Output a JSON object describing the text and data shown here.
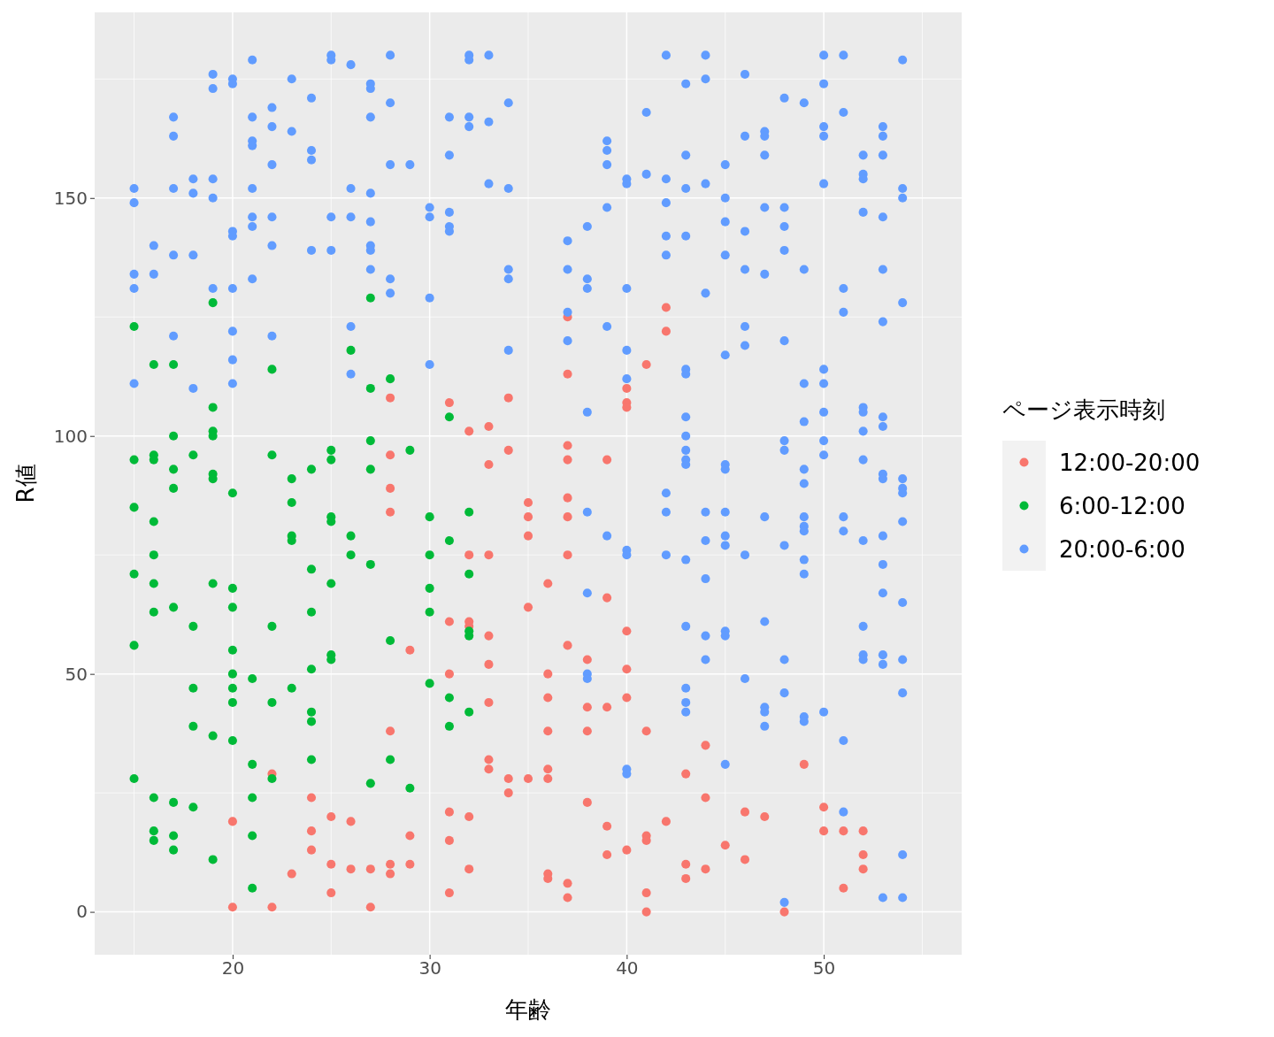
{
  "chart_data": {
    "type": "scatter",
    "xlabel": "年齢",
    "ylabel": "R値",
    "legend_title": "ページ表示時刻",
    "legend": "right",
    "grid": true,
    "marker": "circle",
    "xlim": [
      13,
      57
    ],
    "xticks": [
      20,
      30,
      40,
      50
    ],
    "ylim": [
      -9,
      189
    ],
    "yticks": [
      0,
      50,
      100,
      150
    ],
    "series": [
      {
        "name": "12:00-20:00",
        "color": "#f8766d",
        "x": [
          20,
          20,
          22,
          22,
          23,
          24,
          24,
          24,
          25,
          25,
          25,
          26,
          26,
          27,
          27,
          28,
          28,
          28,
          28,
          28,
          28,
          28,
          29,
          29,
          29,
          31,
          31,
          31,
          31,
          31,
          31,
          32,
          32,
          32,
          32,
          32,
          32,
          33,
          33,
          33,
          33,
          33,
          33,
          33,
          33,
          34,
          34,
          34,
          34,
          35,
          35,
          35,
          35,
          35,
          36,
          36,
          36,
          36,
          36,
          36,
          36,
          36,
          37,
          37,
          37,
          37,
          37,
          37,
          37,
          37,
          37,
          37,
          38,
          38,
          38,
          38,
          39,
          39,
          39,
          39,
          39,
          40,
          40,
          40,
          40,
          40,
          40,
          40,
          41,
          41,
          41,
          41,
          41,
          41,
          42,
          42,
          42,
          43,
          43,
          43,
          44,
          44,
          44,
          45,
          46,
          46,
          47,
          48,
          49,
          50,
          50,
          51,
          51,
          52,
          52,
          52
        ],
        "values": [
          19,
          1,
          29,
          1,
          8,
          24,
          17,
          13,
          20,
          10,
          4,
          19,
          9,
          9,
          1,
          108,
          96,
          89,
          84,
          38,
          10,
          8,
          55,
          16,
          10,
          107,
          61,
          50,
          21,
          15,
          4,
          101,
          75,
          61,
          60,
          20,
          9,
          102,
          94,
          75,
          58,
          52,
          44,
          32,
          30,
          108,
          97,
          28,
          25,
          86,
          83,
          79,
          64,
          28,
          69,
          50,
          45,
          38,
          30,
          28,
          8,
          7,
          125,
          113,
          98,
          95,
          87,
          83,
          75,
          56,
          6,
          3,
          53,
          43,
          38,
          23,
          95,
          66,
          43,
          18,
          12,
          110,
          107,
          106,
          59,
          51,
          45,
          13,
          115,
          38,
          16,
          15,
          4,
          0,
          127,
          122,
          19,
          29,
          10,
          7,
          35,
          24,
          9,
          14,
          21,
          11,
          20,
          0,
          31,
          22,
          17,
          17,
          5,
          17,
          12,
          9
        ]
      },
      {
        "name": "6:00-12:00",
        "color": "#00ba38",
        "x": [
          15,
          15,
          15,
          15,
          15,
          15,
          16,
          16,
          16,
          16,
          16,
          16,
          16,
          16,
          16,
          16,
          17,
          17,
          17,
          17,
          17,
          17,
          17,
          17,
          18,
          18,
          18,
          18,
          18,
          19,
          19,
          19,
          19,
          19,
          19,
          19,
          19,
          19,
          20,
          20,
          20,
          20,
          20,
          20,
          20,
          20,
          21,
          21,
          21,
          21,
          21,
          22,
          22,
          22,
          22,
          22,
          23,
          23,
          23,
          23,
          23,
          24,
          24,
          24,
          24,
          24,
          24,
          24,
          25,
          25,
          25,
          25,
          25,
          25,
          25,
          26,
          26,
          26,
          27,
          27,
          27,
          27,
          27,
          27,
          28,
          28,
          28,
          29,
          29,
          30,
          30,
          30,
          30,
          30,
          31,
          31,
          31,
          31,
          32,
          32,
          32,
          32,
          32
        ],
        "values": [
          123,
          95,
          85,
          71,
          56,
          28,
          115,
          96,
          95,
          82,
          75,
          69,
          63,
          24,
          17,
          15,
          115,
          100,
          93,
          89,
          64,
          23,
          16,
          13,
          96,
          60,
          47,
          39,
          22,
          128,
          106,
          101,
          100,
          92,
          91,
          69,
          37,
          11,
          88,
          68,
          64,
          55,
          50,
          47,
          44,
          36,
          49,
          31,
          24,
          16,
          5,
          114,
          96,
          60,
          44,
          28,
          91,
          86,
          79,
          78,
          47,
          93,
          72,
          63,
          51,
          42,
          40,
          32,
          97,
          95,
          83,
          82,
          69,
          54,
          53,
          118,
          79,
          75,
          129,
          110,
          99,
          93,
          73,
          27,
          112,
          57,
          32,
          97,
          26,
          83,
          75,
          68,
          63,
          48,
          104,
          78,
          45,
          39,
          84,
          71,
          59,
          58,
          42
        ]
      },
      {
        "name": "20:00-6:00",
        "color": "#619cff",
        "x": [
          15,
          15,
          15,
          15,
          15,
          16,
          16,
          17,
          17,
          17,
          17,
          17,
          18,
          18,
          18,
          18,
          19,
          19,
          19,
          19,
          19,
          20,
          20,
          20,
          20,
          20,
          20,
          20,
          20,
          21,
          21,
          21,
          21,
          21,
          21,
          21,
          21,
          22,
          22,
          22,
          22,
          22,
          22,
          23,
          23,
          24,
          24,
          24,
          24,
          25,
          25,
          25,
          25,
          26,
          26,
          26,
          26,
          26,
          27,
          27,
          27,
          27,
          27,
          27,
          27,
          27,
          28,
          28,
          28,
          28,
          28,
          29,
          30,
          30,
          30,
          30,
          31,
          31,
          31,
          31,
          31,
          32,
          32,
          32,
          32,
          33,
          33,
          33,
          34,
          34,
          34,
          34,
          34,
          37,
          37,
          37,
          37,
          38,
          38,
          38,
          38,
          38,
          38,
          38,
          38,
          39,
          39,
          39,
          39,
          39,
          39,
          40,
          40,
          40,
          40,
          40,
          40,
          40,
          40,
          40,
          41,
          41,
          42,
          42,
          42,
          42,
          42,
          42,
          42,
          42,
          43,
          43,
          43,
          43,
          43,
          43,
          43,
          43,
          43,
          43,
          43,
          43,
          43,
          43,
          43,
          43,
          44,
          44,
          44,
          44,
          44,
          44,
          44,
          44,
          44,
          45,
          45,
          45,
          45,
          45,
          45,
          45,
          45,
          45,
          45,
          45,
          45,
          45,
          46,
          46,
          46,
          46,
          46,
          46,
          46,
          46,
          47,
          47,
          47,
          47,
          47,
          47,
          47,
          47,
          47,
          47,
          48,
          48,
          48,
          48,
          48,
          48,
          48,
          48,
          48,
          48,
          48,
          49,
          49,
          49,
          49,
          49,
          49,
          49,
          49,
          49,
          49,
          49,
          49,
          49,
          50,
          50,
          50,
          50,
          50,
          50,
          50,
          50,
          50,
          50,
          50,
          51,
          51,
          51,
          51,
          51,
          51,
          51,
          51,
          52,
          52,
          52,
          52,
          52,
          52,
          52,
          52,
          52,
          52,
          52,
          52,
          53,
          53,
          53,
          53,
          53,
          53,
          53,
          53,
          53,
          53,
          53,
          53,
          53,
          53,
          53,
          53,
          54,
          54,
          54,
          54,
          54,
          54,
          54,
          54,
          54,
          54,
          54,
          54,
          54
        ],
        "values": [
          152,
          149,
          134,
          131,
          111,
          140,
          134,
          167,
          163,
          152,
          138,
          121,
          154,
          151,
          138,
          110,
          176,
          173,
          154,
          150,
          131,
          175,
          174,
          143,
          142,
          131,
          122,
          116,
          111,
          179,
          167,
          162,
          161,
          152,
          146,
          144,
          133,
          169,
          165,
          157,
          146,
          140,
          121,
          175,
          164,
          171,
          160,
          158,
          139,
          180,
          179,
          146,
          139,
          178,
          152,
          146,
          123,
          113,
          174,
          173,
          167,
          151,
          145,
          140,
          139,
          135,
          180,
          170,
          157,
          133,
          130,
          157,
          148,
          146,
          129,
          115,
          167,
          159,
          147,
          144,
          143,
          180,
          179,
          167,
          165,
          180,
          166,
          153,
          170,
          152,
          135,
          133,
          118,
          141,
          135,
          126,
          120,
          144,
          133,
          131,
          105,
          84,
          67,
          50,
          49,
          162,
          160,
          157,
          148,
          123,
          79,
          154,
          153,
          131,
          118,
          112,
          76,
          75,
          30,
          29,
          168,
          155,
          180,
          154,
          149,
          142,
          138,
          88,
          84,
          75,
          174,
          159,
          152,
          142,
          114,
          113,
          104,
          100,
          97,
          95,
          94,
          74,
          60,
          47,
          44,
          42,
          180,
          175,
          153,
          130,
          84,
          78,
          70,
          58,
          53,
          157,
          150,
          145,
          138,
          117,
          94,
          93,
          84,
          79,
          77,
          59,
          58,
          31,
          176,
          163,
          143,
          135,
          123,
          119,
          75,
          49,
          164,
          163,
          159,
          148,
          134,
          83,
          61,
          43,
          42,
          39,
          171,
          148,
          144,
          139,
          120,
          99,
          97,
          77,
          53,
          46,
          2,
          170,
          135,
          111,
          103,
          93,
          90,
          83,
          81,
          80,
          74,
          71,
          41,
          40,
          180,
          174,
          165,
          163,
          153,
          114,
          111,
          105,
          99,
          96,
          42,
          180,
          168,
          131,
          126,
          83,
          80,
          36,
          21,
          159,
          155,
          154,
          147,
          106,
          105,
          101,
          95,
          78,
          60,
          54,
          53,
          165,
          163,
          159,
          146,
          135,
          124,
          104,
          102,
          92,
          91,
          79,
          73,
          67,
          54,
          52,
          3,
          179,
          152,
          150,
          128,
          91,
          89,
          88,
          82,
          65,
          53,
          46,
          12,
          3
        ]
      }
    ]
  }
}
